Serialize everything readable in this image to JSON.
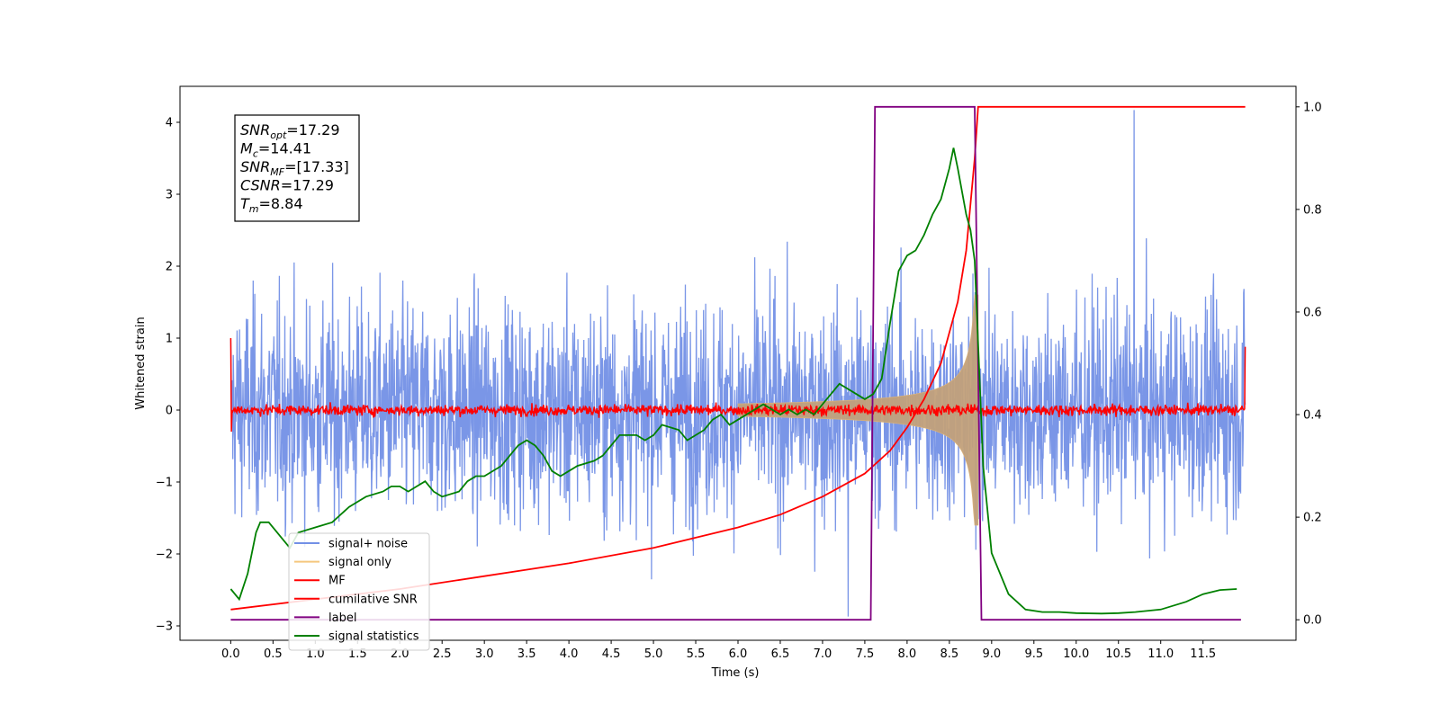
{
  "chart_data": {
    "type": "line",
    "xlabel": "Time (s)",
    "ylabel": "Whitened strain",
    "xlim": [
      -0.6,
      12.6
    ],
    "ylim": [
      -3.2,
      4.5
    ],
    "y2lim": [
      -0.04,
      1.04
    ],
    "x_ticks": [
      "0.0",
      "0.5",
      "1.0",
      "1.5",
      "2.0",
      "2.5",
      "3.0",
      "3.5",
      "4.0",
      "4.5",
      "5.0",
      "5.5",
      "6.0",
      "6.5",
      "7.0",
      "7.5",
      "8.0",
      "8.5",
      "9.0",
      "9.5",
      "10.0",
      "10.5",
      "11.0",
      "11.5"
    ],
    "y_ticks": [
      "-3",
      "-2",
      "-1",
      "0",
      "1",
      "2",
      "3",
      "4"
    ],
    "y2_ticks": [
      "0.0",
      "0.2",
      "0.4",
      "0.6",
      "0.8",
      "1.0"
    ],
    "legend_position": "lower-left",
    "stats_box": [
      {
        "base": "SNR",
        "sub": "opt",
        "value": "=17.29"
      },
      {
        "base": "M",
        "sub": "c",
        "value": "=14.41"
      },
      {
        "base": "SNR",
        "sub": "MF",
        "value": "=[17.33]"
      },
      {
        "base": "CSNR",
        "sub": "",
        "value": "=17.29"
      },
      {
        "base": "T",
        "sub": "m",
        "value": "=8.84"
      }
    ],
    "series": [
      {
        "name": "signal+ noise",
        "color": "#7390e6",
        "axis": "left",
        "kind": "noise",
        "x_range": [
          0.0,
          12.0
        ],
        "y_range": [
          -2.87,
          4.17
        ],
        "typical_amplitude": 1.4
      },
      {
        "name": "signal only",
        "color": "#f5c77e",
        "axis": "left",
        "kind": "chirp",
        "x_range": [
          0.0,
          8.84
        ],
        "peak_amplitude": 1.6
      },
      {
        "name": "MF",
        "color": "#ff0000",
        "axis": "left",
        "kind": "noise",
        "x_range": [
          0.0,
          12.0
        ],
        "typical_amplitude": 0.12
      },
      {
        "name": "cumilative SNR",
        "color": "#ff0000",
        "axis": "right",
        "x": [
          0.0,
          1.0,
          2.0,
          3.0,
          4.0,
          5.0,
          5.5,
          6.0,
          6.5,
          7.0,
          7.5,
          7.8,
          8.0,
          8.2,
          8.4,
          8.6,
          8.7,
          8.8,
          8.84,
          12.0
        ],
        "y": [
          0.02,
          0.04,
          0.06,
          0.085,
          0.11,
          0.14,
          0.16,
          0.18,
          0.205,
          0.24,
          0.285,
          0.33,
          0.375,
          0.43,
          0.5,
          0.62,
          0.72,
          0.9,
          1.0,
          1.0
        ]
      },
      {
        "name": "label",
        "color": "#800080",
        "axis": "right",
        "x": [
          0.0,
          7.57,
          7.62,
          8.8,
          8.88,
          11.95
        ],
        "y": [
          0.0,
          0.0,
          1.0,
          1.0,
          0.0,
          0.0
        ]
      },
      {
        "name": "signal statistics",
        "color": "#008000",
        "axis": "right",
        "x": [
          0.0,
          0.1,
          0.2,
          0.3,
          0.35,
          0.45,
          0.55,
          0.6,
          0.7,
          0.8,
          1.0,
          1.2,
          1.4,
          1.5,
          1.6,
          1.8,
          1.9,
          2.0,
          2.1,
          2.2,
          2.3,
          2.4,
          2.5,
          2.7,
          2.8,
          2.9,
          3.0,
          3.2,
          3.3,
          3.4,
          3.5,
          3.6,
          3.7,
          3.8,
          3.9,
          4.0,
          4.1,
          4.3,
          4.4,
          4.5,
          4.6,
          4.8,
          4.9,
          5.0,
          5.1,
          5.3,
          5.4,
          5.5,
          5.6,
          5.7,
          5.8,
          5.9,
          6.0,
          6.1,
          6.2,
          6.3,
          6.4,
          6.5,
          6.6,
          6.7,
          6.8,
          6.9,
          7.0,
          7.1,
          7.2,
          7.3,
          7.4,
          7.5,
          7.6,
          7.7,
          7.8,
          7.9,
          8.0,
          8.1,
          8.2,
          8.3,
          8.4,
          8.5,
          8.55,
          8.6,
          8.7,
          8.75,
          8.8,
          8.9,
          9.0,
          9.2,
          9.4,
          9.6,
          9.8,
          10.0,
          10.3,
          10.5,
          10.7,
          11.0,
          11.3,
          11.5,
          11.7,
          11.9
        ],
        "y": [
          0.06,
          0.04,
          0.09,
          0.17,
          0.19,
          0.19,
          0.17,
          0.16,
          0.14,
          0.17,
          0.18,
          0.19,
          0.22,
          0.23,
          0.24,
          0.25,
          0.26,
          0.26,
          0.25,
          0.26,
          0.27,
          0.25,
          0.24,
          0.25,
          0.27,
          0.28,
          0.28,
          0.3,
          0.32,
          0.34,
          0.35,
          0.34,
          0.32,
          0.29,
          0.28,
          0.29,
          0.3,
          0.31,
          0.32,
          0.34,
          0.36,
          0.36,
          0.35,
          0.36,
          0.38,
          0.37,
          0.35,
          0.36,
          0.37,
          0.39,
          0.4,
          0.38,
          0.39,
          0.4,
          0.41,
          0.42,
          0.41,
          0.4,
          0.41,
          0.4,
          0.41,
          0.4,
          0.42,
          0.44,
          0.46,
          0.45,
          0.44,
          0.43,
          0.44,
          0.47,
          0.58,
          0.68,
          0.71,
          0.72,
          0.75,
          0.79,
          0.82,
          0.88,
          0.92,
          0.88,
          0.79,
          0.76,
          0.7,
          0.3,
          0.13,
          0.05,
          0.02,
          0.015,
          0.015,
          0.013,
          0.012,
          0.013,
          0.015,
          0.02,
          0.035,
          0.05,
          0.058,
          0.06
        ]
      }
    ]
  }
}
